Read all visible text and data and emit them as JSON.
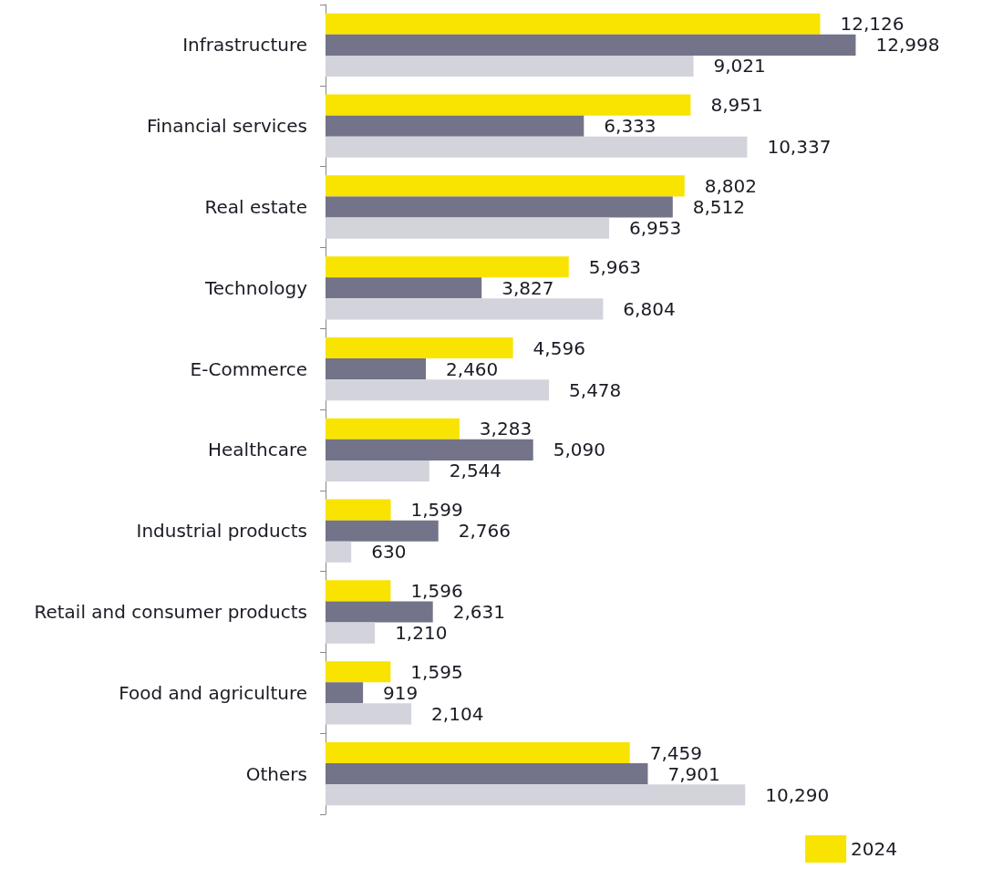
{
  "chart_data": {
    "type": "bar",
    "orientation": "horizontal",
    "legend": "bottom right",
    "tick_labels": "y",
    "categories": [
      "Infrastructure",
      "Financial services",
      "Real estate",
      "Technology",
      "E-Commerce",
      "Healthcare",
      "Industrial products",
      "Retail and consumer products",
      "Food and agriculture",
      "Others"
    ],
    "series": [
      {
        "name": "2024",
        "color": "#f9e300",
        "values": [
          12126,
          8951,
          8802,
          5963,
          4596,
          3283,
          1599,
          1596,
          1595,
          7459
        ],
        "value_labels": [
          "12,126",
          "8,951",
          "8,802",
          "5,963",
          "4,596",
          "3,283",
          "1,599",
          "1,596",
          "1,595",
          "7,459"
        ]
      },
      {
        "color": "#737389",
        "values": [
          12998,
          6333,
          8512,
          3827,
          2460,
          5090,
          2766,
          2631,
          919,
          7901
        ],
        "value_labels": [
          "12,998",
          "6,333",
          "8,512",
          "3,827",
          "2,460",
          "5,090",
          "2,766",
          "2,631",
          "919",
          "7,901"
        ]
      },
      {
        "color": "#d3d3dc",
        "values": [
          9021,
          10337,
          6953,
          6804,
          5478,
          2544,
          630,
          1210,
          2104,
          10290
        ],
        "value_labels": [
          "9,021",
          "10,337",
          "6,953",
          "6,804",
          "5,478",
          "2,544",
          "630",
          "1,210",
          "2,104",
          "10,290"
        ]
      }
    ]
  }
}
